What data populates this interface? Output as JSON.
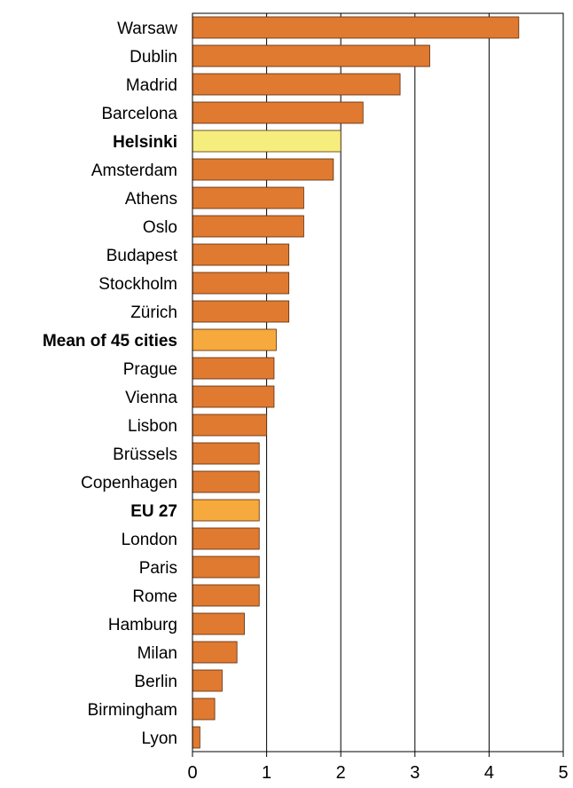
{
  "chart_data": {
    "type": "bar",
    "orientation": "horizontal",
    "title": "",
    "xlabel": "",
    "ylabel": "",
    "xlim": [
      0,
      5
    ],
    "ticks": [
      "0",
      "1",
      "2",
      "3",
      "4",
      "5"
    ],
    "grid": true,
    "legend": "none",
    "categories": [
      "Warsaw",
      "Dublin",
      "Madrid",
      "Barcelona",
      "Helsinki",
      "Amsterdam",
      "Athens",
      "Oslo",
      "Budapest",
      "Stockholm",
      "Zürich",
      "Mean of 45 cities",
      "Prague",
      "Vienna",
      "Lisbon",
      "Brüssels",
      "Copenhagen",
      "EU 27",
      "London",
      "Paris",
      "Rome",
      "Hamburg",
      "Milan",
      "Berlin",
      "Birmingham",
      "Lyon"
    ],
    "values": [
      4.4,
      3.2,
      2.8,
      2.3,
      2.0,
      1.9,
      1.5,
      1.5,
      1.3,
      1.3,
      1.3,
      1.13,
      1.1,
      1.1,
      1.0,
      0.9,
      0.9,
      0.9,
      0.9,
      0.9,
      0.9,
      0.7,
      0.6,
      0.4,
      0.3,
      0.1
    ],
    "highlight": {
      "Helsinki": "#f6ee7c",
      "Mean of 45 cities": "#f6a93c",
      "EU 27": "#f6a93c"
    },
    "bold_categories": [
      "Helsinki",
      "Mean of 45 cities",
      "EU 27"
    ],
    "colors": {
      "bar": "#e07a30",
      "bar_stroke": "#5a2a0a"
    }
  }
}
